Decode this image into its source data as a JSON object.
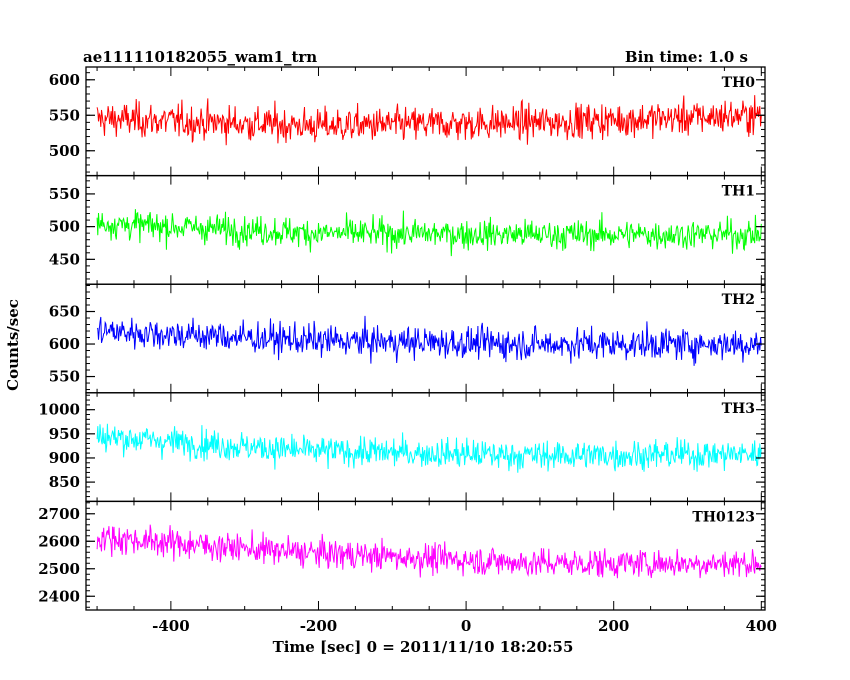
{
  "chart_data": {
    "type": "line",
    "title": "ae111110182055_wam1_trn",
    "subtitle": "Bin time: 1.0 s",
    "xlabel": "Time [sec] 0 = 2011/11/10 18:20:55",
    "ylabel": "Counts/sec",
    "xlim": [
      -515,
      405
    ],
    "x_range": [
      -500,
      400
    ],
    "xticks": [
      -400,
      -200,
      0,
      200,
      400
    ],
    "grid": false,
    "panels": [
      {
        "name": "TH0",
        "color": "#ff0000",
        "ylim": [
          465,
          618
        ],
        "yticks": [
          500,
          550,
          600
        ],
        "trend": [
          [
            -500,
            545
          ],
          [
            -200,
            535
          ],
          [
            100,
            540
          ],
          [
            400,
            550
          ]
        ],
        "noise": 24
      },
      {
        "name": "TH1",
        "color": "#00ff00",
        "ylim": [
          412,
          578
        ],
        "yticks": [
          450,
          500,
          550
        ],
        "trend": [
          [
            -500,
            505
          ],
          [
            -200,
            490
          ],
          [
            100,
            488
          ],
          [
            400,
            488
          ]
        ],
        "noise": 22
      },
      {
        "name": "TH2",
        "color": "#0000ff",
        "ylim": [
          525,
          692
        ],
        "yticks": [
          550,
          600,
          650
        ],
        "trend": [
          [
            -500,
            620
          ],
          [
            -200,
            605
          ],
          [
            100,
            600
          ],
          [
            400,
            600
          ]
        ],
        "noise": 24
      },
      {
        "name": "TH3",
        "color": "#00ffff",
        "ylim": [
          810,
          1035
        ],
        "yticks": [
          850,
          900,
          950,
          1000
        ],
        "trend": [
          [
            -500,
            945
          ],
          [
            -220,
            915
          ],
          [
            100,
            905
          ],
          [
            400,
            908
          ]
        ],
        "noise": 30
      },
      {
        "name": "TH0123",
        "color": "#ff00ff",
        "ylim": [
          2350,
          2745
        ],
        "yticks": [
          2400,
          2500,
          2600,
          2700
        ],
        "trend": [
          [
            -500,
            2615
          ],
          [
            -230,
            2560
          ],
          [
            100,
            2520
          ],
          [
            400,
            2520
          ]
        ],
        "noise": 52
      }
    ]
  }
}
